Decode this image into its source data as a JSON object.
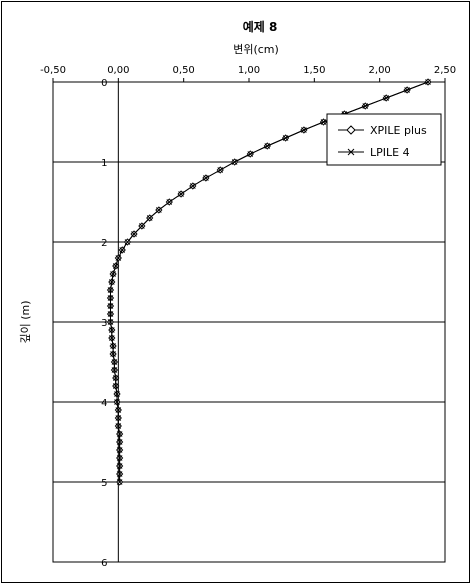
{
  "chart_data": {
    "type": "line",
    "title": "예제 8",
    "xlabel": "변위(cm)",
    "ylabel": "깊이 (m)",
    "x_axis_position": "top",
    "y_axis_inverted": true,
    "xlim": [
      -0.5,
      2.5
    ],
    "ylim": [
      0,
      6
    ],
    "xticks": [
      "-0,50",
      "0,00",
      "0,50",
      "1,00",
      "1,50",
      "2,00",
      "2,50"
    ],
    "yticks": [
      "0",
      "1",
      "2",
      "3",
      "4",
      "5",
      "6"
    ],
    "grid": "horizontal",
    "legend_position": "top-right",
    "series": [
      {
        "name": "XPILE plus",
        "marker": "diamond",
        "color": "#000000",
        "depth": [
          0,
          0.1,
          0.2,
          0.3,
          0.4,
          0.5,
          0.6,
          0.7,
          0.8,
          0.9,
          1.0,
          1.1,
          1.2,
          1.3,
          1.4,
          1.5,
          1.6,
          1.7,
          1.8,
          1.9,
          2.0,
          2.1,
          2.2,
          2.3,
          2.4,
          2.5,
          2.6,
          2.7,
          2.8,
          2.9,
          3.0,
          3.1,
          3.2,
          3.3,
          3.4,
          3.5,
          3.6,
          3.7,
          3.8,
          3.9,
          4.0,
          4.1,
          4.2,
          4.3,
          4.4,
          4.5,
          4.6,
          4.7,
          4.8,
          4.9,
          5.0
        ],
        "displacement": [
          2.37,
          2.21,
          2.05,
          1.89,
          1.73,
          1.57,
          1.42,
          1.28,
          1.14,
          1.01,
          0.89,
          0.78,
          0.67,
          0.57,
          0.48,
          0.39,
          0.31,
          0.24,
          0.18,
          0.12,
          0.07,
          0.03,
          0.0,
          -0.02,
          -0.04,
          -0.05,
          -0.06,
          -0.06,
          -0.06,
          -0.06,
          -0.06,
          -0.05,
          -0.05,
          -0.04,
          -0.04,
          -0.03,
          -0.03,
          -0.02,
          -0.02,
          -0.01,
          -0.01,
          0.0,
          0.0,
          0.0,
          0.01,
          0.01,
          0.01,
          0.01,
          0.01,
          0.01,
          0.01
        ]
      },
      {
        "name": "LPILE 4",
        "marker": "x",
        "color": "#000000",
        "depth": [
          0,
          0.1,
          0.2,
          0.3,
          0.4,
          0.5,
          0.6,
          0.7,
          0.8,
          0.9,
          1.0,
          1.1,
          1.2,
          1.3,
          1.4,
          1.5,
          1.6,
          1.7,
          1.8,
          1.9,
          2.0,
          2.1,
          2.2,
          2.3,
          2.4,
          2.5,
          2.6,
          2.7,
          2.8,
          2.9,
          3.0,
          3.1,
          3.2,
          3.3,
          3.4,
          3.5,
          3.6,
          3.7,
          3.8,
          3.9,
          4.0,
          4.1,
          4.2,
          4.3,
          4.4,
          4.5,
          4.6,
          4.7,
          4.8,
          4.9,
          5.0
        ],
        "displacement": [
          2.37,
          2.21,
          2.05,
          1.89,
          1.73,
          1.57,
          1.42,
          1.28,
          1.14,
          1.01,
          0.89,
          0.78,
          0.67,
          0.57,
          0.48,
          0.39,
          0.31,
          0.24,
          0.18,
          0.12,
          0.07,
          0.03,
          0.0,
          -0.02,
          -0.04,
          -0.05,
          -0.06,
          -0.06,
          -0.06,
          -0.06,
          -0.06,
          -0.05,
          -0.05,
          -0.04,
          -0.04,
          -0.03,
          -0.03,
          -0.02,
          -0.02,
          -0.01,
          -0.01,
          0.0,
          0.0,
          0.0,
          0.01,
          0.01,
          0.01,
          0.01,
          0.01,
          0.01,
          0.01
        ]
      }
    ]
  }
}
